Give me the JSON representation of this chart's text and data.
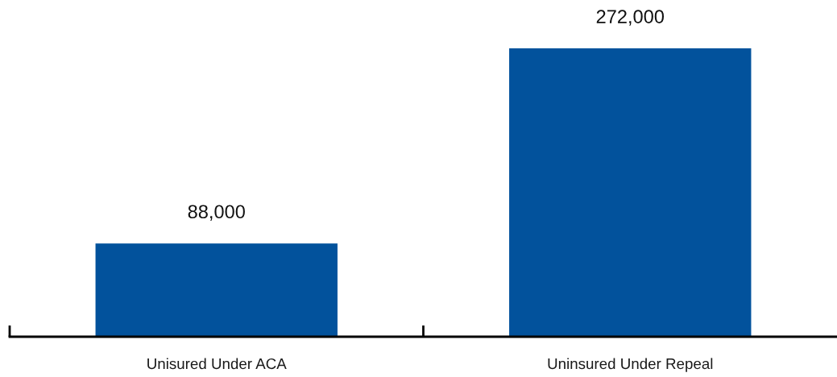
{
  "chart_data": {
    "type": "bar",
    "categories": [
      "Unisured Under ACA",
      "Uninsured Under Repeal"
    ],
    "values": [
      88000,
      272000
    ],
    "value_labels": [
      "88,000",
      "272,000"
    ],
    "color": "#02529c",
    "tick_labels": "x"
  }
}
